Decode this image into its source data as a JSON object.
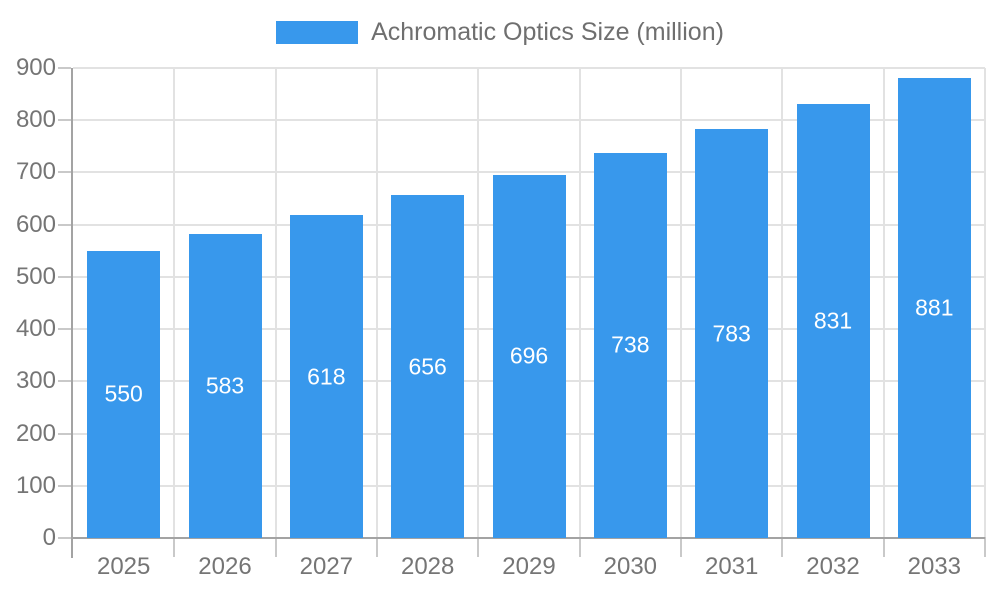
{
  "legend": {
    "label": "Achromatic Optics Size (million)"
  },
  "colors": {
    "bar": "#3898EC",
    "bar_label": "#FFFFFF",
    "axis_label": "#757575",
    "legend_text": "#6F6F6F",
    "axis_line": "#A3A3A3",
    "gridline": "#E2E2E2",
    "tick": "#C9C9C9",
    "background": "#FFFFFF"
  },
  "chart_data": {
    "type": "bar",
    "title": "",
    "categories": [
      "2025",
      "2026",
      "2027",
      "2028",
      "2029",
      "2030",
      "2031",
      "2032",
      "2033"
    ],
    "series": [
      {
        "name": "Achromatic Optics Size (million)",
        "values": [
          550,
          583,
          618,
          656,
          696,
          738,
          783,
          831,
          881
        ]
      }
    ],
    "xlabel": "",
    "ylabel": "",
    "ylim": [
      0,
      900
    ],
    "ytick_step": 100,
    "grid": true,
    "legend_position": "top-center",
    "value_labels": "inside-center"
  }
}
